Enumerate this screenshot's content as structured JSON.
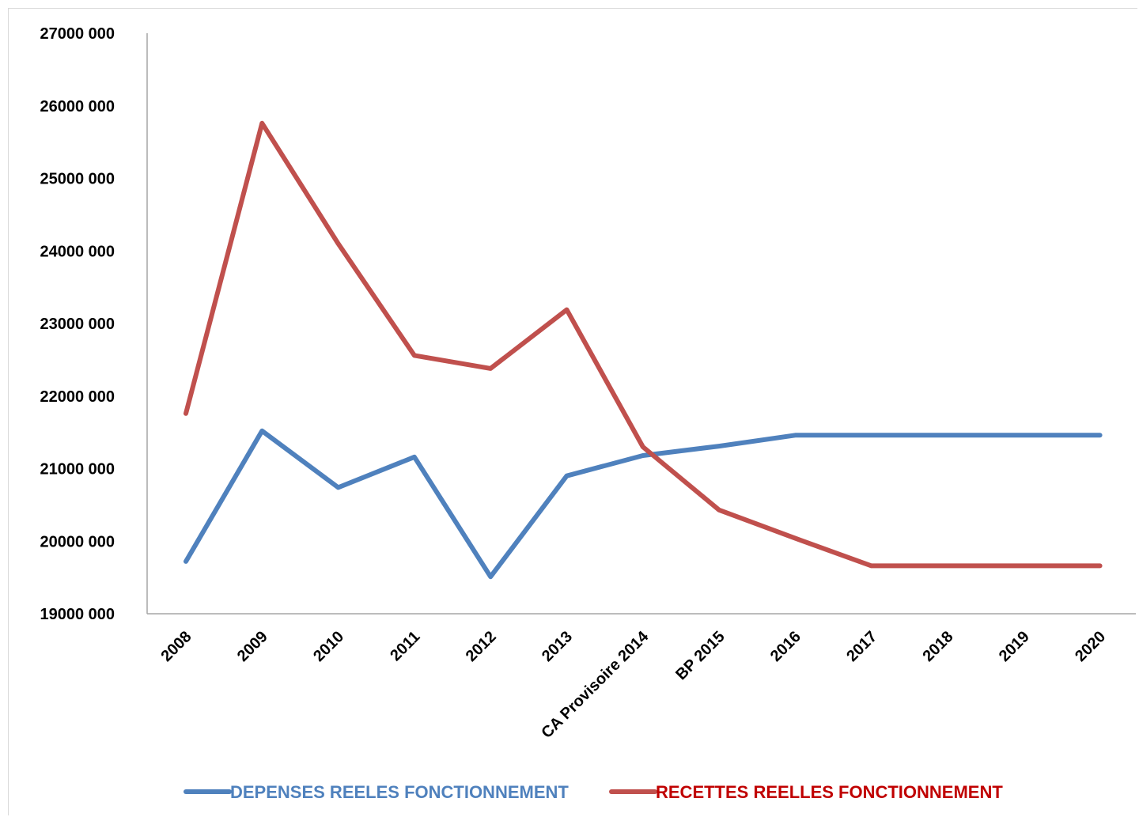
{
  "chart_data": {
    "type": "line",
    "categories": [
      "2008",
      "2009",
      "2010",
      "2011",
      "2012",
      "2013",
      "CA Provisoire 2014",
      "BP 2015",
      "2016",
      "2017",
      "2018",
      "2019",
      "2020"
    ],
    "y_ticks": [
      "27000 000",
      "26000 000",
      "25000 000",
      "24000 000",
      "23000 000",
      "22000 000",
      "21000 000",
      "20000 000",
      "19000 000"
    ],
    "ylim": [
      19000000,
      27000000
    ],
    "grid": false,
    "legend_position": "bottom",
    "series": [
      {
        "name": "DEPENSES REELES FONCTIONNEMENT",
        "color": "#4F81BD",
        "label_color": "#4F81BD",
        "values": [
          19720000,
          21520000,
          20740000,
          21160000,
          19510000,
          20900000,
          21180000,
          21310000,
          21460000,
          21460000,
          21460000,
          21460000,
          21460000
        ]
      },
      {
        "name": "RECETTES REELLES FONCTIONNEMENT",
        "color": "#C0504D",
        "label_color": "#C00000",
        "values": [
          21760000,
          25760000,
          24100000,
          22560000,
          22380000,
          23190000,
          21300000,
          20430000,
          20040000,
          19660000,
          19660000,
          19660000,
          19660000
        ]
      }
    ]
  }
}
